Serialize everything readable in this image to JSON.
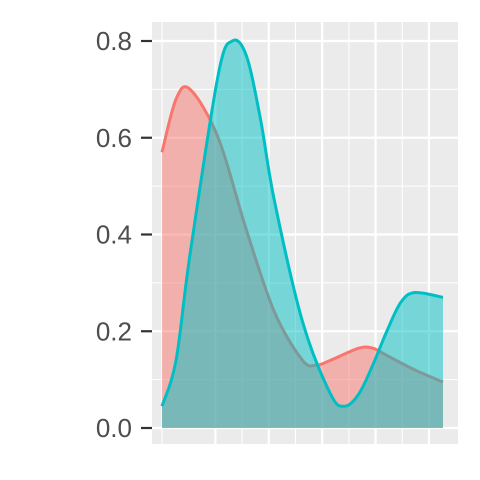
{
  "chart_data": {
    "type": "area",
    "title": "",
    "xlabel": "",
    "ylabel": "",
    "ylim": [
      0,
      0.8
    ],
    "yticks": [
      {
        "value": 0.0,
        "label": "0.0"
      },
      {
        "value": 0.2,
        "label": "0.2"
      },
      {
        "value": 0.4,
        "label": "0.4"
      },
      {
        "value": 0.6,
        "label": "0.6"
      },
      {
        "value": 0.8,
        "label": "0.8"
      }
    ],
    "xlim": [
      0,
      1
    ],
    "grid": true,
    "legend": "none",
    "series": [
      {
        "color": "#F8766D",
        "x": [
          0.0,
          0.05,
          0.1,
          0.2,
          0.3,
          0.4,
          0.5,
          0.55,
          0.6,
          0.7,
          0.75,
          0.8,
          0.9,
          1.0
        ],
        "y": [
          0.57,
          0.68,
          0.7,
          0.6,
          0.41,
          0.24,
          0.14,
          0.13,
          0.14,
          0.165,
          0.165,
          0.15,
          0.12,
          0.095
        ]
      },
      {
        "color": "#00BFC4",
        "x": [
          0.0,
          0.05,
          0.1,
          0.2,
          0.25,
          0.3,
          0.35,
          0.4,
          0.5,
          0.6,
          0.65,
          0.7,
          0.75,
          0.8,
          0.85,
          0.9,
          1.0
        ],
        "y": [
          0.045,
          0.14,
          0.36,
          0.73,
          0.8,
          0.77,
          0.64,
          0.47,
          0.22,
          0.07,
          0.045,
          0.07,
          0.13,
          0.2,
          0.26,
          0.28,
          0.27
        ]
      }
    ]
  }
}
